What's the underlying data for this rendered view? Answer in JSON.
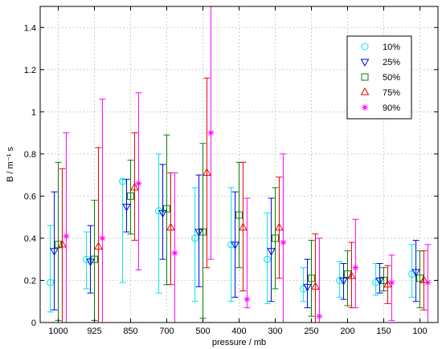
{
  "chart_data": {
    "type": "errorbar",
    "xlabel": "pressure / mb",
    "ylabel": "B / m⁻¹ s",
    "ylim": [
      0,
      1.5
    ],
    "yticks": [
      0,
      0.2,
      0.4,
      0.6,
      0.8,
      1.0,
      1.2,
      1.4
    ],
    "ytick_labels": [
      "0",
      "0.2",
      "0.4",
      "0.6",
      "0.8",
      "1",
      "1.2",
      "1.4"
    ],
    "categories": [
      "1000",
      "925",
      "850",
      "700",
      "500",
      "400",
      "300",
      "250",
      "200",
      "150",
      "100"
    ],
    "grid": true,
    "legend_position": "top-right",
    "series": [
      {
        "name": "10%",
        "marker": "circle",
        "color": "#00e5e5",
        "center": [
          0.19,
          0.3,
          0.67,
          0.53,
          0.4,
          0.37,
          0.3,
          0.16,
          0.2,
          0.19,
          0.23
        ],
        "lower": [
          0.05,
          0.16,
          0.19,
          0.14,
          0.1,
          0.1,
          0.09,
          0.1,
          0.12,
          0.13,
          0.12
        ],
        "upper": [
          0.46,
          0.43,
          0.68,
          0.8,
          0.64,
          0.64,
          0.52,
          0.26,
          0.29,
          0.28,
          0.37
        ]
      },
      {
        "name": "25%",
        "marker": "triangle-down",
        "color": "#0000ee",
        "center": [
          0.34,
          0.29,
          0.55,
          0.52,
          0.43,
          0.37,
          0.34,
          0.17,
          0.2,
          0.2,
          0.24
        ],
        "lower": [
          0.06,
          0.14,
          0.43,
          0.3,
          0.17,
          0.12,
          0.1,
          0.07,
          0.11,
          0.14,
          0.1
        ],
        "upper": [
          0.62,
          0.46,
          0.68,
          0.75,
          0.7,
          0.62,
          0.59,
          0.3,
          0.28,
          0.28,
          0.39
        ]
      },
      {
        "name": "50%",
        "marker": "square",
        "color": "#008000",
        "center": [
          0.37,
          0.3,
          0.6,
          0.54,
          0.43,
          0.51,
          0.4,
          0.21,
          0.23,
          0.2,
          0.21
        ],
        "lower": [
          0.01,
          0.01,
          0.42,
          0.18,
          0.02,
          0.26,
          0.16,
          0.03,
          0.08,
          0.15,
          0.07
        ],
        "upper": [
          0.76,
          0.58,
          0.77,
          0.89,
          0.85,
          0.76,
          0.64,
          0.39,
          0.34,
          0.26,
          0.34
        ]
      },
      {
        "name": "75%",
        "marker": "triangle-up",
        "color": "#ee0000",
        "center": [
          0.37,
          0.36,
          0.64,
          0.45,
          0.71,
          0.45,
          0.45,
          0.17,
          0.22,
          0.18,
          0.2
        ],
        "lower": [
          0.0,
          0.0,
          0.39,
          0.18,
          0.26,
          0.15,
          0.21,
          0.0,
          0.07,
          0.09,
          0.06
        ],
        "upper": [
          0.73,
          0.83,
          0.9,
          0.71,
          1.16,
          0.76,
          0.69,
          0.42,
          0.38,
          0.27,
          0.34
        ]
      },
      {
        "name": "90%",
        "marker": "asterisk",
        "color": "#ff00ff",
        "center": [
          0.41,
          0.4,
          0.66,
          0.33,
          0.9,
          0.11,
          0.38,
          0.03,
          0.26,
          0.19,
          0.19
        ],
        "lower": [
          0.0,
          0.0,
          0.25,
          0.0,
          0.3,
          0.07,
          0.0,
          0.0,
          0.07,
          0.01,
          0.0
        ],
        "upper": [
          0.9,
          1.06,
          1.09,
          0.71,
          1.5,
          0.59,
          0.8,
          0.4,
          0.49,
          0.32,
          0.37
        ]
      }
    ]
  }
}
